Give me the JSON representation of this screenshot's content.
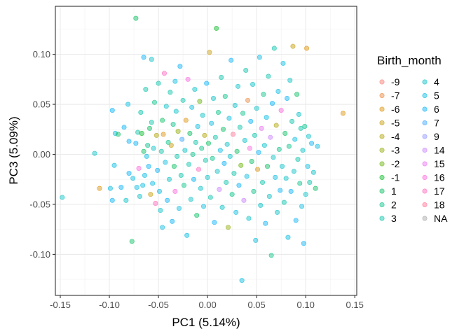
{
  "chart_data": {
    "type": "scatter",
    "xlabel": "PC1 (5.14%)",
    "ylabel": "PC3 (5.09%)",
    "xlim": [
      -0.155,
      0.152
    ],
    "ylim": [
      -0.141,
      0.148
    ],
    "x_ticks": [
      -0.15,
      -0.1,
      -0.05,
      0.0,
      0.05,
      0.1,
      0.15
    ],
    "x_tick_labels": [
      "-0.15",
      "-0.10",
      "-0.05",
      "0.00",
      "0.05",
      "0.10",
      "0.15"
    ],
    "y_ticks": [
      -0.1,
      -0.05,
      0.0,
      0.05,
      0.1
    ],
    "y_tick_labels": [
      "-0.10",
      "-0.05",
      "0.00",
      "0.05",
      "0.10"
    ],
    "grid": true,
    "legend": {
      "title": "Birth_month",
      "placement": "right",
      "columns": 2,
      "entries": [
        {
          "label": "-9",
          "color": "#F8766D"
        },
        {
          "label": "-7",
          "color": "#E58700"
        },
        {
          "label": "-6",
          "color": "#C99800"
        },
        {
          "label": "-5",
          "color": "#A3A500"
        },
        {
          "label": "-4",
          "color": "#6BB100"
        },
        {
          "label": "-3",
          "color": "#00BA38"
        },
        {
          "label": "-2",
          "color": "#00BF7D"
        },
        {
          "label": "-1",
          "color": "#00C0AF"
        },
        {
          "label": "1",
          "color": "#00BCD8"
        },
        {
          "label": "2",
          "color": "#00B0F6"
        },
        {
          "label": "3",
          "color": "#619CFF"
        },
        {
          "label": "4",
          "color": "#B983FF"
        },
        {
          "label": "5",
          "color": "#E76BF3"
        },
        {
          "label": "6",
          "color": "#FD61D1"
        },
        {
          "label": "7",
          "color": "#FF67A4"
        },
        {
          "label": "9",
          "color": "#FF6C91"
        },
        {
          "label": "14",
          "color": "#F8766D"
        },
        {
          "label": "15",
          "color": "#E58700"
        },
        {
          "label": "16",
          "color": "#C99800"
        },
        {
          "label": "17",
          "color": "#A3A500"
        },
        {
          "label": "18",
          "color": "#6BB100"
        },
        {
          "label": "NA",
          "color": "#00BA38"
        }
      ]
    },
    "legend_display": {
      "col1": [
        {
          "label": "-9",
          "color": "#F8766D"
        },
        {
          "label": "-7",
          "color": "#EB8335"
        },
        {
          "label": "-6",
          "color": "#DB8E00"
        },
        {
          "label": "-5",
          "color": "#C59900"
        },
        {
          "label": "-4",
          "color": "#AEA200"
        },
        {
          "label": "-3",
          "color": "#8FAA00"
        },
        {
          "label": "-2",
          "color": "#64B200"
        },
        {
          "label": "-1",
          "color": "#00B81F"
        },
        {
          "label": "1",
          "color": "#00BD5C"
        },
        {
          "label": "2",
          "color": "#00C086"
        },
        {
          "label": "3",
          "color": "#00C1A7"
        }
      ],
      "col2": [
        {
          "label": "4",
          "color": "#00BFC4"
        },
        {
          "label": "5",
          "color": "#00BADF"
        },
        {
          "label": "6",
          "color": "#00B0F6"
        },
        {
          "label": "7",
          "color": "#35A2FF"
        },
        {
          "label": "9",
          "color": "#8F91FF"
        },
        {
          "label": "14",
          "color": "#C77CFF"
        },
        {
          "label": "15",
          "color": "#E86BF3"
        },
        {
          "label": "16",
          "color": "#FA62DB"
        },
        {
          "label": "17",
          "color": "#FF62BC"
        },
        {
          "label": "18",
          "color": "#FF6C91"
        },
        {
          "label": "NA",
          "color": "#A3A3A3"
        }
      ]
    },
    "points": [
      {
        "x": -0.148,
        "y": -0.043,
        "g": "4"
      },
      {
        "x": -0.115,
        "y": 0.001,
        "g": "4"
      },
      {
        "x": -0.11,
        "y": -0.034,
        "g": "-6"
      },
      {
        "x": -0.099,
        "y": -0.034,
        "g": "5"
      },
      {
        "x": -0.097,
        "y": -0.046,
        "g": "6"
      },
      {
        "x": -0.097,
        "y": 0.044,
        "g": "6"
      },
      {
        "x": -0.095,
        "y": -0.011,
        "g": "5"
      },
      {
        "x": -0.094,
        "y": 0.021,
        "g": "5"
      },
      {
        "x": -0.091,
        "y": 0.02,
        "g": "1"
      },
      {
        "x": -0.088,
        "y": -0.033,
        "g": "6"
      },
      {
        "x": -0.085,
        "y": 0.027,
        "g": "6"
      },
      {
        "x": -0.083,
        "y": -0.046,
        "g": "4"
      },
      {
        "x": -0.081,
        "y": 0.05,
        "g": "5"
      },
      {
        "x": -0.08,
        "y": 0.013,
        "g": "6"
      },
      {
        "x": -0.08,
        "y": -0.019,
        "g": "6"
      },
      {
        "x": -0.077,
        "y": -0.087,
        "g": "1"
      },
      {
        "x": -0.076,
        "y": -0.024,
        "g": "5"
      },
      {
        "x": -0.073,
        "y": 0.011,
        "g": "6"
      },
      {
        "x": -0.073,
        "y": 0.136,
        "g": "1"
      },
      {
        "x": -0.072,
        "y": -0.033,
        "g": "5"
      },
      {
        "x": -0.071,
        "y": 0.022,
        "g": "3"
      },
      {
        "x": -0.07,
        "y": -0.014,
        "g": "16"
      },
      {
        "x": -0.069,
        "y": -0.042,
        "g": "4"
      },
      {
        "x": -0.068,
        "y": 0.042,
        "g": "3"
      },
      {
        "x": -0.067,
        "y": 0.021,
        "g": "-1"
      },
      {
        "x": -0.066,
        "y": -0.031,
        "g": "5"
      },
      {
        "x": -0.065,
        "y": 0.097,
        "g": "6"
      },
      {
        "x": -0.065,
        "y": 0.003,
        "g": "1"
      },
      {
        "x": -0.064,
        "y": -0.021,
        "g": "5"
      },
      {
        "x": -0.063,
        "y": 0.065,
        "g": "3"
      },
      {
        "x": -0.062,
        "y": -0.002,
        "g": "5"
      },
      {
        "x": -0.061,
        "y": 0.009,
        "g": "2"
      },
      {
        "x": -0.06,
        "y": -0.012,
        "g": "6"
      },
      {
        "x": -0.059,
        "y": 0.026,
        "g": "1"
      },
      {
        "x": -0.058,
        "y": -0.04,
        "g": "-5"
      },
      {
        "x": -0.057,
        "y": 0.032,
        "g": "3"
      },
      {
        "x": -0.057,
        "y": 0.095,
        "g": "4"
      },
      {
        "x": -0.056,
        "y": -0.029,
        "g": "5"
      },
      {
        "x": -0.055,
        "y": 0.006,
        "g": "4"
      },
      {
        "x": -0.054,
        "y": 0.052,
        "g": "2"
      },
      {
        "x": -0.053,
        "y": -0.049,
        "g": "17"
      },
      {
        "x": -0.052,
        "y": 0.019,
        "g": "-4"
      },
      {
        "x": -0.051,
        "y": -0.016,
        "g": "6"
      },
      {
        "x": -0.05,
        "y": 0.071,
        "g": "3"
      },
      {
        "x": -0.049,
        "y": -0.037,
        "g": "5"
      },
      {
        "x": -0.048,
        "y": -0.056,
        "g": "4"
      },
      {
        "x": -0.047,
        "y": 0.003,
        "g": "3"
      },
      {
        "x": -0.046,
        "y": 0.034,
        "g": "1"
      },
      {
        "x": -0.046,
        "y": -0.073,
        "g": "5"
      },
      {
        "x": -0.045,
        "y": 0.02,
        "g": "-6"
      },
      {
        "x": -0.044,
        "y": 0.081,
        "g": "17"
      },
      {
        "x": -0.043,
        "y": -0.008,
        "g": "5"
      },
      {
        "x": -0.042,
        "y": 0.048,
        "g": "4"
      },
      {
        "x": -0.041,
        "y": -0.046,
        "g": "6"
      },
      {
        "x": -0.04,
        "y": 0.012,
        "g": "2"
      },
      {
        "x": -0.039,
        "y": -0.025,
        "g": "4"
      },
      {
        "x": -0.038,
        "y": 0.062,
        "g": "3"
      },
      {
        "x": -0.037,
        "y": 0.009,
        "g": "-5"
      },
      {
        "x": -0.036,
        "y": -0.067,
        "g": "6"
      },
      {
        "x": -0.035,
        "y": 0.03,
        "g": "2"
      },
      {
        "x": -0.034,
        "y": -0.012,
        "g": "1"
      },
      {
        "x": -0.033,
        "y": 0.073,
        "g": "5"
      },
      {
        "x": -0.033,
        "y": -0.037,
        "g": "16"
      },
      {
        "x": -0.032,
        "y": 0.043,
        "g": "4"
      },
      {
        "x": -0.031,
        "y": -0.002,
        "g": "3"
      },
      {
        "x": -0.03,
        "y": 0.023,
        "g": "-3"
      },
      {
        "x": -0.029,
        "y": -0.054,
        "g": "5"
      },
      {
        "x": -0.028,
        "y": 0.088,
        "g": "6"
      },
      {
        "x": -0.027,
        "y": -0.021,
        "g": "3"
      },
      {
        "x": -0.026,
        "y": 0.015,
        "g": "7"
      },
      {
        "x": -0.025,
        "y": 0.054,
        "g": "3"
      },
      {
        "x": -0.024,
        "y": -0.031,
        "g": "2"
      },
      {
        "x": -0.023,
        "y": 0.004,
        "g": "4"
      },
      {
        "x": -0.022,
        "y": 0.034,
        "g": "-6"
      },
      {
        "x": -0.021,
        "y": -0.081,
        "g": "5"
      },
      {
        "x": -0.02,
        "y": 0.075,
        "g": "16"
      },
      {
        "x": -0.019,
        "y": -0.01,
        "g": "3"
      },
      {
        "x": -0.018,
        "y": 0.021,
        "g": "1"
      },
      {
        "x": -0.017,
        "y": -0.045,
        "g": "4"
      },
      {
        "x": -0.016,
        "y": 0.047,
        "g": "5"
      },
      {
        "x": -0.015,
        "y": 0.0,
        "g": "2"
      },
      {
        "x": -0.014,
        "y": -0.025,
        "g": "6"
      },
      {
        "x": -0.013,
        "y": 0.065,
        "g": "4"
      },
      {
        "x": -0.012,
        "y": 0.012,
        "g": "3"
      },
      {
        "x": -0.011,
        "y": -0.061,
        "g": "1"
      },
      {
        "x": -0.01,
        "y": 0.028,
        "g": "5"
      },
      {
        "x": -0.009,
        "y": -0.015,
        "g": "17"
      },
      {
        "x": -0.008,
        "y": 0.053,
        "g": "-2"
      },
      {
        "x": -0.007,
        "y": -0.034,
        "g": "4"
      },
      {
        "x": -0.006,
        "y": 0.006,
        "g": "2"
      },
      {
        "x": -0.005,
        "y": 0.039,
        "g": "4"
      },
      {
        "x": -0.004,
        "y": -0.052,
        "g": "5"
      },
      {
        "x": -0.003,
        "y": 0.019,
        "g": "-4"
      },
      {
        "x": -0.002,
        "y": -0.006,
        "g": "3"
      },
      {
        "x": -0.001,
        "y": 0.071,
        "g": "6"
      },
      {
        "x": 0.0,
        "y": -0.023,
        "g": "4"
      },
      {
        "x": 0.001,
        "y": 0.011,
        "g": "1"
      },
      {
        "x": 0.002,
        "y": 0.102,
        "g": "-5"
      },
      {
        "x": 0.003,
        "y": -0.043,
        "g": "3"
      },
      {
        "x": 0.004,
        "y": 0.031,
        "g": "5"
      },
      {
        "x": 0.005,
        "y": -0.004,
        "g": "2"
      },
      {
        "x": 0.006,
        "y": 0.056,
        "g": "4"
      },
      {
        "x": 0.007,
        "y": -0.068,
        "g": "6"
      },
      {
        "x": 0.008,
        "y": 0.017,
        "g": "3"
      },
      {
        "x": 0.009,
        "y": 0.126,
        "g": "-1"
      },
      {
        "x": 0.01,
        "y": -0.017,
        "g": "4"
      },
      {
        "x": 0.011,
        "y": 0.042,
        "g": "2"
      },
      {
        "x": 0.012,
        "y": -0.035,
        "g": "14"
      },
      {
        "x": 0.013,
        "y": 0.004,
        "g": "5"
      },
      {
        "x": 0.014,
        "y": 0.077,
        "g": "3"
      },
      {
        "x": 0.015,
        "y": -0.053,
        "g": "4"
      },
      {
        "x": 0.016,
        "y": 0.025,
        "g": "1"
      },
      {
        "x": 0.017,
        "y": -0.009,
        "g": "6"
      },
      {
        "x": 0.018,
        "y": 0.058,
        "g": "2"
      },
      {
        "x": 0.019,
        "y": -0.028,
        "g": "3"
      },
      {
        "x": 0.02,
        "y": 0.01,
        "g": "4"
      },
      {
        "x": 0.021,
        "y": -0.073,
        "g": "-3"
      },
      {
        "x": 0.022,
        "y": 0.036,
        "g": "5"
      },
      {
        "x": 0.023,
        "y": -0.002,
        "g": "4"
      },
      {
        "x": 0.024,
        "y": 0.094,
        "g": "6"
      },
      {
        "x": 0.025,
        "y": -0.04,
        "g": "2"
      },
      {
        "x": 0.026,
        "y": 0.02,
        "g": "18"
      },
      {
        "x": 0.027,
        "y": -0.019,
        "g": "3"
      },
      {
        "x": 0.028,
        "y": 0.049,
        "g": "4"
      },
      {
        "x": 0.029,
        "y": -0.058,
        "g": "5"
      },
      {
        "x": 0.03,
        "y": 0.003,
        "g": "1"
      },
      {
        "x": 0.031,
        "y": 0.068,
        "g": "4"
      },
      {
        "x": 0.032,
        "y": -0.031,
        "g": "6"
      },
      {
        "x": 0.033,
        "y": 0.027,
        "g": "3"
      },
      {
        "x": 0.034,
        "y": -0.011,
        "g": "-2"
      },
      {
        "x": 0.035,
        "y": -0.126,
        "g": "5"
      },
      {
        "x": 0.036,
        "y": 0.041,
        "g": "2"
      },
      {
        "x": 0.037,
        "y": -0.046,
        "g": "14"
      },
      {
        "x": 0.038,
        "y": 0.014,
        "g": "4"
      },
      {
        "x": 0.039,
        "y": 0.084,
        "g": "3"
      },
      {
        "x": 0.04,
        "y": -0.022,
        "g": "5"
      },
      {
        "x": 0.041,
        "y": 0.054,
        "g": "-7"
      },
      {
        "x": 0.042,
        "y": -0.064,
        "g": "4"
      },
      {
        "x": 0.043,
        "y": 0.006,
        "g": "16"
      },
      {
        "x": 0.044,
        "y": 0.033,
        "g": "6"
      },
      {
        "x": 0.045,
        "y": -0.007,
        "g": "1"
      },
      {
        "x": 0.046,
        "y": 0.07,
        "g": "4"
      },
      {
        "x": 0.047,
        "y": -0.037,
        "g": "2"
      },
      {
        "x": 0.048,
        "y": 0.019,
        "g": "3"
      },
      {
        "x": 0.049,
        "y": -0.086,
        "g": "5"
      },
      {
        "x": 0.05,
        "y": 0.046,
        "g": "4"
      },
      {
        "x": 0.051,
        "y": -0.015,
        "g": "-6"
      },
      {
        "x": 0.052,
        "y": 0.002,
        "g": "6"
      },
      {
        "x": 0.053,
        "y": 0.097,
        "g": "5"
      },
      {
        "x": 0.054,
        "y": -0.051,
        "g": "4"
      },
      {
        "x": 0.055,
        "y": 0.026,
        "g": "15"
      },
      {
        "x": 0.056,
        "y": -0.028,
        "g": "3"
      },
      {
        "x": 0.057,
        "y": 0.06,
        "g": "2"
      },
      {
        "x": 0.058,
        "y": 0.009,
        "g": "4"
      },
      {
        "x": 0.059,
        "y": -0.069,
        "g": "6"
      },
      {
        "x": 0.06,
        "y": 0.037,
        "g": "5"
      },
      {
        "x": 0.061,
        "y": -0.012,
        "g": "1"
      },
      {
        "x": 0.062,
        "y": 0.078,
        "g": "3"
      },
      {
        "x": 0.063,
        "y": -0.042,
        "g": "4"
      },
      {
        "x": 0.064,
        "y": 0.017,
        "g": "14"
      },
      {
        "x": 0.065,
        "y": -0.101,
        "g": "2"
      },
      {
        "x": 0.066,
        "y": 0.051,
        "g": "6"
      },
      {
        "x": 0.067,
        "y": -0.003,
        "g": "4"
      },
      {
        "x": 0.068,
        "y": 0.106,
        "g": "3"
      },
      {
        "x": 0.069,
        "y": -0.023,
        "g": "5"
      },
      {
        "x": 0.07,
        "y": 0.029,
        "g": "-4"
      },
      {
        "x": 0.071,
        "y": -0.058,
        "g": "4"
      },
      {
        "x": 0.072,
        "y": 0.063,
        "g": "5"
      },
      {
        "x": 0.073,
        "y": 0.005,
        "g": "2"
      },
      {
        "x": 0.074,
        "y": -0.036,
        "g": "6"
      },
      {
        "x": 0.075,
        "y": 0.044,
        "g": "16"
      },
      {
        "x": 0.076,
        "y": -0.012,
        "g": "4"
      },
      {
        "x": 0.077,
        "y": 0.091,
        "g": "5"
      },
      {
        "x": 0.078,
        "y": -0.048,
        "g": "3"
      },
      {
        "x": 0.079,
        "y": 0.021,
        "g": "1"
      },
      {
        "x": 0.08,
        "y": -0.024,
        "g": "4"
      },
      {
        "x": 0.081,
        "y": 0.056,
        "g": "6"
      },
      {
        "x": 0.082,
        "y": -0.083,
        "g": "5"
      },
      {
        "x": 0.083,
        "y": 0.008,
        "g": "2"
      },
      {
        "x": 0.084,
        "y": 0.074,
        "g": "4"
      },
      {
        "x": 0.085,
        "y": -0.037,
        "g": "6"
      },
      {
        "x": 0.086,
        "y": 0.033,
        "g": "3"
      },
      {
        "x": 0.087,
        "y": 0.108,
        "g": "-5"
      },
      {
        "x": 0.088,
        "y": -0.017,
        "g": "4"
      },
      {
        "x": 0.089,
        "y": 0.015,
        "g": "5"
      },
      {
        "x": 0.09,
        "y": -0.066,
        "g": "6"
      },
      {
        "x": 0.091,
        "y": 0.06,
        "g": "1"
      },
      {
        "x": 0.092,
        "y": -0.005,
        "g": "3"
      },
      {
        "x": 0.093,
        "y": 0.04,
        "g": "4"
      },
      {
        "x": 0.094,
        "y": -0.029,
        "g": "2"
      },
      {
        "x": 0.095,
        "y": 0.026,
        "g": "3"
      },
      {
        "x": 0.096,
        "y": -0.052,
        "g": "5"
      },
      {
        "x": 0.097,
        "y": 0.004,
        "g": "4"
      },
      {
        "x": 0.098,
        "y": -0.089,
        "g": "6"
      },
      {
        "x": 0.099,
        "y": 0.028,
        "g": "2"
      },
      {
        "x": 0.1,
        "y": -0.04,
        "g": "4"
      },
      {
        "x": 0.101,
        "y": 0.106,
        "g": "-6"
      },
      {
        "x": 0.102,
        "y": -0.012,
        "g": "5"
      },
      {
        "x": 0.103,
        "y": 0.018,
        "g": "4"
      },
      {
        "x": 0.104,
        "y": -0.028,
        "g": "3"
      },
      {
        "x": 0.106,
        "y": 0.011,
        "g": "6"
      },
      {
        "x": 0.108,
        "y": -0.018,
        "g": "4"
      },
      {
        "x": 0.11,
        "y": -0.034,
        "g": "1"
      },
      {
        "x": 0.112,
        "y": 0.008,
        "g": "5"
      },
      {
        "x": 0.138,
        "y": 0.041,
        "g": "-6"
      }
    ]
  }
}
